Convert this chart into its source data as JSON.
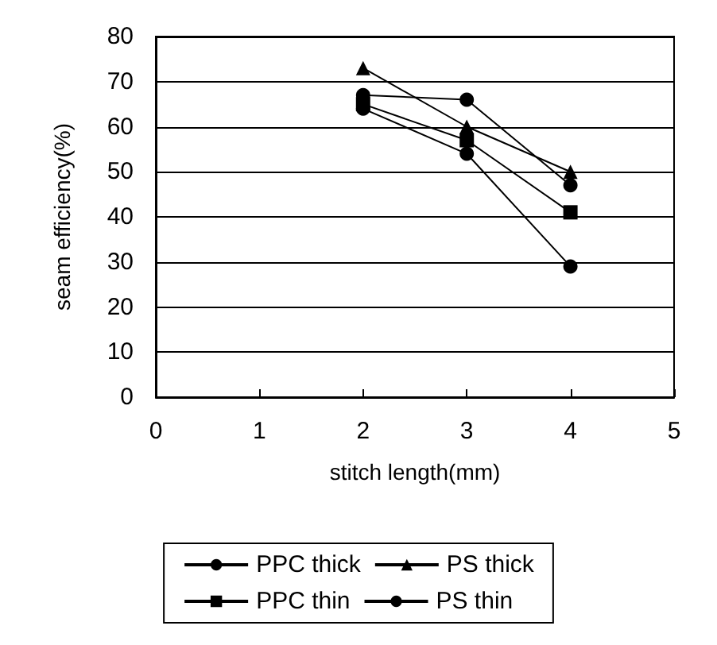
{
  "chart_data": {
    "type": "line",
    "xlabel": "stitch length(mm)",
    "ylabel": "seam efficiency(%)",
    "x": [
      2,
      3,
      4
    ],
    "xlim": [
      0,
      5
    ],
    "xticks": [
      0,
      1,
      2,
      3,
      4,
      5
    ],
    "ylim": [
      0,
      80
    ],
    "yticks": [
      0,
      10,
      20,
      30,
      40,
      50,
      60,
      70,
      80
    ],
    "grid": "y",
    "legend": "bottom",
    "line_style": "solid",
    "series": [
      {
        "name": "PPC thick",
        "color": "#000000",
        "marker": "circle",
        "values": [
          67,
          66,
          47
        ]
      },
      {
        "name": "PS thick",
        "color": "#000000",
        "marker": "triangle",
        "values": [
          73,
          60,
          50
        ]
      },
      {
        "name": "PPC thin",
        "color": "#000000",
        "marker": "square",
        "values": [
          65,
          57,
          41
        ]
      },
      {
        "name": "PS thin",
        "color": "#000000",
        "marker": "circle",
        "values": [
          64,
          54,
          29
        ]
      }
    ]
  }
}
